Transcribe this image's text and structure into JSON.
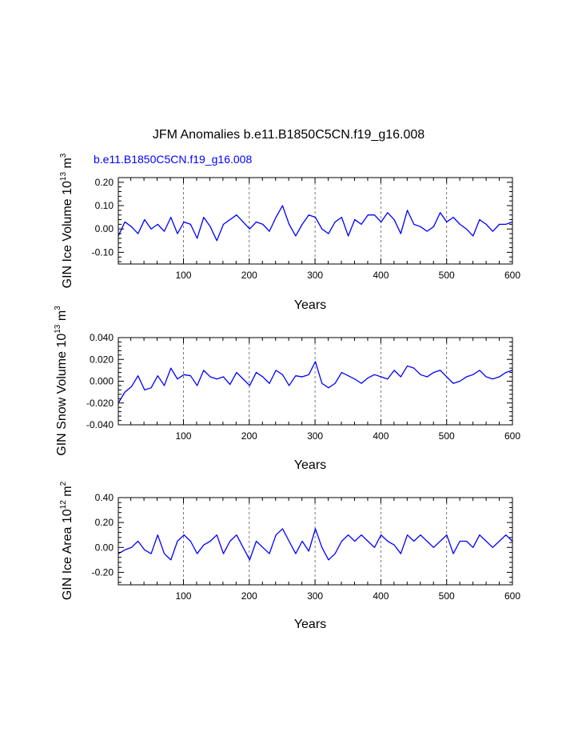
{
  "figure": {
    "title": "JFM Anomalies b.e11.B1850C5CN.f19_g16.008",
    "run_label": "b.e11.B1850C5CN.f19_g16.008",
    "run_label_color": "#0000ff"
  },
  "chart_data": [
    {
      "type": "line",
      "title": "",
      "xlabel": "Years",
      "ylabel_main": "GIN Ice Volume 10",
      "ylabel_exp": "13",
      "ylabel_unit": " m",
      "ylabel_unit_exp": "3",
      "xlim": [
        1,
        600
      ],
      "ylim": [
        -0.15,
        0.22
      ],
      "xticks": [
        100,
        200,
        300,
        400,
        500,
        600
      ],
      "xtick_labels": [
        "100",
        "200",
        "300",
        "400",
        "500",
        "600"
      ],
      "yticks": [
        -0.1,
        0.0,
        0.1,
        0.2
      ],
      "ytick_labels": [
        "-0.10",
        "0.00",
        "0.10",
        "0.20"
      ],
      "ystep": 0.1,
      "vlines": [
        100,
        200,
        300,
        400,
        500
      ],
      "series": [
        {
          "name": "GIN Ice Volume",
          "color": "#0000ff",
          "x_start": 1,
          "x_step": 10,
          "values": [
            -0.03,
            0.03,
            0.01,
            -0.02,
            0.04,
            0.0,
            0.02,
            -0.01,
            0.05,
            -0.02,
            0.03,
            0.02,
            -0.04,
            0.05,
            0.01,
            -0.05,
            0.02,
            0.04,
            0.06,
            0.03,
            0.0,
            0.03,
            0.02,
            -0.01,
            0.05,
            0.1,
            0.02,
            -0.03,
            0.02,
            0.06,
            0.05,
            0.0,
            -0.02,
            0.03,
            0.05,
            -0.03,
            0.04,
            0.02,
            0.06,
            0.06,
            0.03,
            0.07,
            0.04,
            -0.02,
            0.08,
            0.02,
            0.01,
            -0.01,
            0.01,
            0.07,
            0.03,
            0.05,
            0.02,
            0.0,
            -0.03,
            0.04,
            0.02,
            -0.01,
            0.02,
            0.02,
            0.03
          ]
        }
      ]
    },
    {
      "type": "line",
      "title": "",
      "xlabel": "Years",
      "ylabel_main": "GIN Snow Volume 10",
      "ylabel_exp": "13",
      "ylabel_unit": " m",
      "ylabel_unit_exp": "3",
      "xlim": [
        1,
        600
      ],
      "ylim": [
        -0.04,
        0.04
      ],
      "xticks": [
        100,
        200,
        300,
        400,
        500,
        600
      ],
      "xtick_labels": [
        "100",
        "200",
        "300",
        "400",
        "500",
        "600"
      ],
      "yticks": [
        -0.04,
        -0.02,
        0.0,
        0.02,
        0.04
      ],
      "ytick_labels": [
        "-0.040",
        "-0.020",
        "0.000",
        "0.020",
        "0.040"
      ],
      "ystep": 0.02,
      "vlines": [
        100,
        200,
        300,
        400,
        500
      ],
      "series": [
        {
          "name": "GIN Snow Volume",
          "color": "#0000ff",
          "x_start": 1,
          "x_step": 10,
          "values": [
            -0.02,
            -0.01,
            -0.005,
            0.005,
            -0.008,
            -0.006,
            0.005,
            -0.004,
            0.012,
            0.002,
            0.006,
            0.005,
            -0.004,
            0.01,
            0.004,
            0.002,
            0.004,
            -0.003,
            0.008,
            0.002,
            -0.004,
            0.008,
            0.004,
            -0.002,
            0.01,
            0.006,
            -0.004,
            0.005,
            0.004,
            0.006,
            0.018,
            -0.002,
            -0.006,
            -0.002,
            0.008,
            0.005,
            0.002,
            -0.002,
            0.003,
            0.006,
            0.004,
            0.002,
            0.01,
            0.004,
            0.014,
            0.012,
            0.006,
            0.004,
            0.008,
            0.01,
            0.004,
            -0.002,
            0.0,
            0.004,
            0.006,
            0.01,
            0.004,
            0.002,
            0.004,
            0.008,
            0.01
          ]
        }
      ]
    },
    {
      "type": "line",
      "title": "",
      "xlabel": "Years",
      "ylabel_main": "GIN Ice Area 10",
      "ylabel_exp": "12",
      "ylabel_unit": " m",
      "ylabel_unit_exp": "2",
      "xlim": [
        1,
        600
      ],
      "ylim": [
        -0.3,
        0.4
      ],
      "xticks": [
        100,
        200,
        300,
        400,
        500,
        600
      ],
      "xtick_labels": [
        "100",
        "200",
        "300",
        "400",
        "500",
        "600"
      ],
      "yticks": [
        -0.2,
        0.0,
        0.2,
        0.4
      ],
      "ytick_labels": [
        "-0.20",
        "0.00",
        "0.20",
        "0.40"
      ],
      "ystep": 0.2,
      "vlines": [
        100,
        200,
        300,
        400,
        500
      ],
      "series": [
        {
          "name": "GIN Ice Area",
          "color": "#0000ff",
          "x_start": 1,
          "x_step": 10,
          "values": [
            -0.05,
            -0.02,
            0.0,
            0.05,
            -0.02,
            -0.05,
            0.1,
            -0.05,
            -0.1,
            0.05,
            0.1,
            0.05,
            -0.05,
            0.02,
            0.05,
            0.1,
            -0.05,
            0.05,
            0.1,
            0.0,
            -0.1,
            0.05,
            0.0,
            -0.05,
            0.1,
            0.15,
            0.05,
            -0.05,
            0.05,
            -0.03,
            0.15,
            0.0,
            -0.1,
            -0.05,
            0.05,
            0.1,
            0.05,
            0.1,
            0.05,
            0.0,
            0.1,
            0.05,
            0.02,
            -0.05,
            0.1,
            0.05,
            0.1,
            0.05,
            0.0,
            0.05,
            0.1,
            -0.05,
            0.05,
            0.05,
            0.0,
            0.1,
            0.05,
            0.0,
            0.05,
            0.1,
            0.05
          ]
        }
      ]
    }
  ]
}
